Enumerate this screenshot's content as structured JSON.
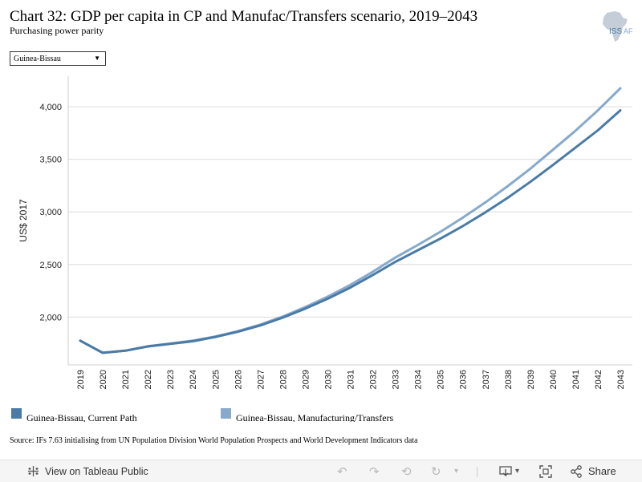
{
  "header": {
    "title": "Chart 32: GDP per capita in CP and Manufac/Transfers scenario, 2019–2043",
    "subtitle": "Purchasing power parity",
    "logo_text": "ISS",
    "logo_suffix": "AF"
  },
  "country_select": {
    "value": "Guinea-Bissau"
  },
  "colors": {
    "current_path": "#4a7ba7",
    "manufacturing": "#86a9cc"
  },
  "chart_data": {
    "type": "line",
    "ylabel": "US$ 2017",
    "xlabel": "",
    "ylim": [
      1545,
      4290
    ],
    "yticks": [
      2000,
      2500,
      3000,
      3500,
      4000
    ],
    "ytick_labels": [
      "2,000",
      "2,500",
      "3,000",
      "3,500",
      "4,000"
    ],
    "x": [
      "2019",
      "2020",
      "2021",
      "2022",
      "2023",
      "2024",
      "2025",
      "2026",
      "2027",
      "2028",
      "2029",
      "2030",
      "2031",
      "2032",
      "2033",
      "2034",
      "2035",
      "2036",
      "2037",
      "2038",
      "2039",
      "2040",
      "2041",
      "2042",
      "2043"
    ],
    "grid": true,
    "legend_position": "bottom-left",
    "series": [
      {
        "name": "Guinea-Bissau, Current Path",
        "values": [
          1775,
          1660,
          1680,
          1720,
          1745,
          1770,
          1810,
          1860,
          1920,
          1995,
          2080,
          2175,
          2280,
          2400,
          2525,
          2635,
          2745,
          2865,
          2995,
          3135,
          3285,
          3445,
          3610,
          3775,
          3965
        ]
      },
      {
        "name": "Guinea-Bissau, Manufacturing/Transfers",
        "values": [
          1775,
          1660,
          1680,
          1722,
          1748,
          1775,
          1815,
          1866,
          1928,
          2005,
          2095,
          2195,
          2305,
          2430,
          2565,
          2685,
          2810,
          2945,
          3090,
          3245,
          3410,
          3590,
          3770,
          3965,
          4175
        ]
      }
    ]
  },
  "source": "Source: IFs 7.63 initialising from UN Population Division World Population Prospects and World Development Indicators data",
  "toolbar": {
    "view_label": "View on Tableau Public",
    "share_label": "Share",
    "dropdown_caret": "▾"
  },
  "icons": {
    "tableau": "tableau-logo-icon",
    "undo": "undo-icon",
    "redo": "redo-icon",
    "revert": "revert-icon",
    "refresh": "refresh-icon",
    "download": "download-icon",
    "fullscreen": "fullscreen-icon",
    "share": "share-icon"
  }
}
